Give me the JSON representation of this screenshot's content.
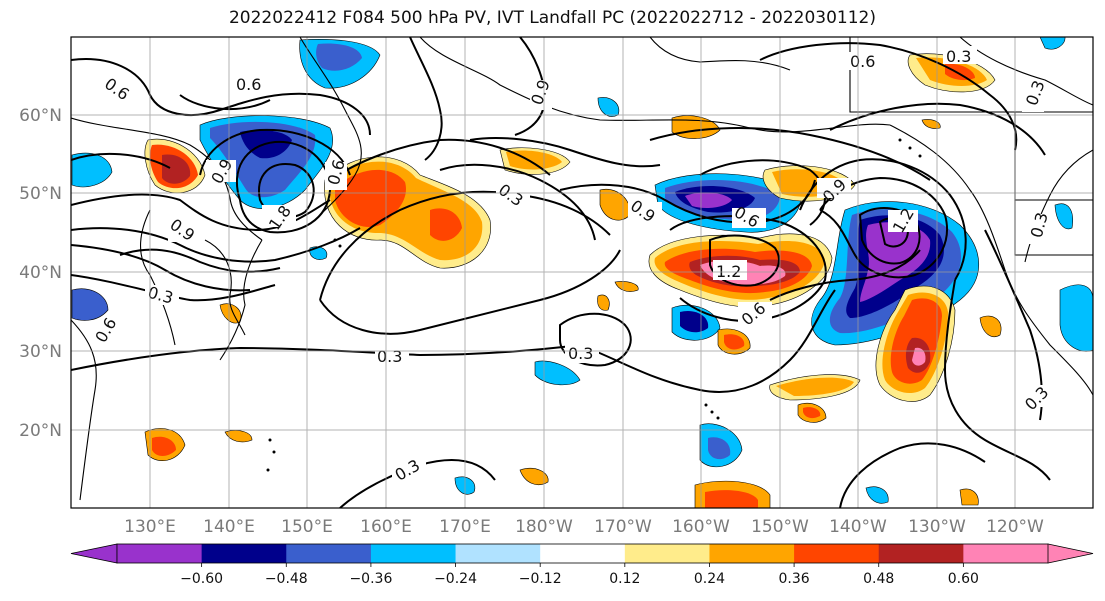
{
  "title": "2022022412 F084 500 hPa PV, IVT Landfall PC (2022022712 - 2022030112)",
  "lat_labels": [
    "60°N",
    "50°N",
    "40°N",
    "30°N",
    "20°N"
  ],
  "lon_labels": [
    "130°E",
    "140°E",
    "150°E",
    "160°E",
    "170°E",
    "180°W",
    "170°W",
    "160°W",
    "150°W",
    "140°W",
    "130°W",
    "120°W"
  ],
  "colorbar": {
    "colors": [
      "#9932CC",
      "#00008B",
      "#3A5FCD",
      "#00BFFF",
      "#B0E2FF",
      "#FFFFFF",
      "#FFEC8B",
      "#FFA500",
      "#FF4500",
      "#B22222",
      "#FF83B5"
    ],
    "tick_labels": [
      "−0.60",
      "−0.48",
      "−0.36",
      "−0.24",
      "−0.12",
      "0.12",
      "0.24",
      "0.36",
      "0.48",
      "0.60"
    ]
  },
  "contour_labels": [
    "0.6",
    "0.6",
    "0.6",
    "0.3",
    "0.9",
    "0.3",
    "0.9",
    "1.2",
    "1.8",
    "0.9",
    "0.3",
    "0.3",
    "0.3",
    "0.6",
    "0.9",
    "0.6",
    "1.2",
    "0.9",
    "0.6",
    "0.3",
    "0.3",
    "0.3",
    "0.3",
    "0.6"
  ]
}
